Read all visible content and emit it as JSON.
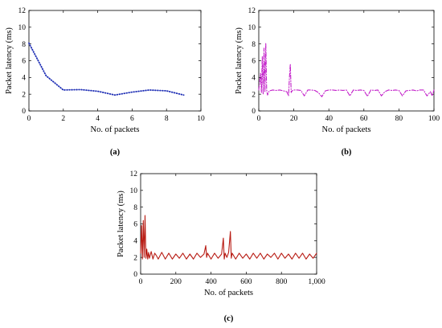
{
  "chart_data": [
    {
      "type": "line",
      "caption": "(a)",
      "xlabel": "No. of packets",
      "ylabel": "Packet latency (ms)",
      "xlim": [
        0,
        10
      ],
      "ylim": [
        0,
        12
      ],
      "xticks": [
        "0",
        "2",
        "4",
        "6",
        "8",
        "10"
      ],
      "yticks": [
        "0",
        "2",
        "4",
        "6",
        "8",
        "10",
        "12"
      ],
      "line_style": "dotted",
      "color": "#1f2fb5",
      "series": [
        {
          "x": [
            0,
            1,
            2,
            3,
            4,
            5,
            6,
            7,
            8,
            9
          ],
          "y": [
            8.1,
            4.2,
            2.5,
            2.55,
            2.35,
            1.9,
            2.25,
            2.5,
            2.4,
            1.9
          ]
        }
      ]
    },
    {
      "type": "line",
      "caption": "(b)",
      "xlabel": "No. of packets",
      "ylabel": "Packet latency (ms)",
      "xlim": [
        0,
        100
      ],
      "ylim": [
        0,
        12
      ],
      "xticks": [
        "0",
        "20",
        "40",
        "60",
        "80",
        "100"
      ],
      "yticks": [
        "0",
        "2",
        "4",
        "6",
        "8",
        "10",
        "12"
      ],
      "line_style": "dash-dot",
      "color": "#c21dc9",
      "series": [
        {
          "x": [
            0,
            1,
            1.5,
            2,
            2.5,
            3,
            3.5,
            4,
            4.5,
            5,
            6,
            8,
            10,
            12,
            14,
            16,
            17,
            17.5,
            18,
            18.5,
            19,
            20,
            22,
            24,
            26,
            28,
            30,
            32,
            34,
            36,
            38,
            40,
            42,
            44,
            46,
            48,
            50,
            52,
            54,
            56,
            58,
            60,
            62,
            64,
            66,
            68,
            70,
            72,
            74,
            76,
            78,
            80,
            82,
            84,
            86,
            88,
            90,
            92,
            94,
            96,
            98,
            99,
            100
          ],
          "y": [
            2.5,
            4.5,
            2.2,
            6.5,
            2.0,
            7.5,
            2.3,
            8.1,
            2.5,
            1.9,
            2.4,
            2.5,
            2.45,
            2.5,
            2.4,
            2.3,
            1.8,
            4.0,
            5.6,
            2.2,
            2.4,
            2.5,
            2.5,
            2.45,
            1.8,
            2.5,
            2.5,
            2.45,
            2.2,
            1.7,
            2.4,
            2.5,
            2.5,
            2.45,
            2.5,
            2.45,
            2.5,
            1.8,
            2.5,
            2.45,
            2.5,
            2.45,
            1.75,
            2.5,
            2.45,
            2.5,
            1.8,
            2.3,
            2.5,
            2.45,
            2.5,
            2.45,
            1.8,
            2.4,
            2.45,
            2.5,
            2.4,
            2.5,
            2.5,
            1.8,
            2.3,
            1.8,
            2.5
          ]
        }
      ]
    },
    {
      "type": "line",
      "caption": "(c)",
      "xlabel": "No. of packets",
      "ylabel": "Packet latency (ms)",
      "xlim": [
        0,
        1000
      ],
      "ylim": [
        0,
        12
      ],
      "xticks": [
        "0",
        "200",
        "400",
        "600",
        "800",
        "1,000"
      ],
      "yticks": [
        "0",
        "2",
        "4",
        "6",
        "8",
        "10",
        "12"
      ],
      "line_style": "solid",
      "color": "#b81c14",
      "series": [
        {
          "x": [
            0,
            5,
            10,
            15,
            20,
            25,
            30,
            35,
            40,
            45,
            50,
            60,
            70,
            80,
            90,
            100,
            120,
            140,
            160,
            180,
            200,
            220,
            240,
            260,
            280,
            300,
            320,
            340,
            360,
            370,
            375,
            380,
            400,
            420,
            440,
            460,
            470,
            475,
            480,
            490,
            500,
            510,
            515,
            520,
            540,
            560,
            580,
            600,
            620,
            640,
            660,
            680,
            700,
            720,
            740,
            760,
            780,
            800,
            820,
            840,
            860,
            880,
            900,
            920,
            940,
            960,
            980,
            1000
          ],
          "y": [
            2.5,
            5.8,
            1.8,
            6.4,
            2.0,
            7.0,
            1.9,
            3.0,
            1.8,
            2.6,
            1.9,
            2.7,
            1.8,
            2.5,
            2.2,
            1.8,
            2.6,
            1.8,
            2.5,
            1.8,
            2.4,
            1.9,
            2.5,
            1.8,
            2.4,
            1.8,
            2.5,
            2.0,
            2.4,
            3.4,
            2.0,
            2.5,
            1.8,
            2.5,
            1.9,
            2.4,
            4.3,
            1.8,
            2.5,
            2.0,
            2.6,
            5.1,
            1.9,
            2.5,
            1.8,
            2.5,
            1.9,
            2.4,
            1.8,
            2.5,
            1.9,
            2.5,
            1.8,
            2.4,
            2.0,
            2.5,
            1.8,
            2.5,
            1.9,
            2.4,
            1.8,
            2.5,
            1.9,
            2.5,
            1.8,
            2.4,
            1.9,
            2.5
          ]
        }
      ]
    }
  ]
}
